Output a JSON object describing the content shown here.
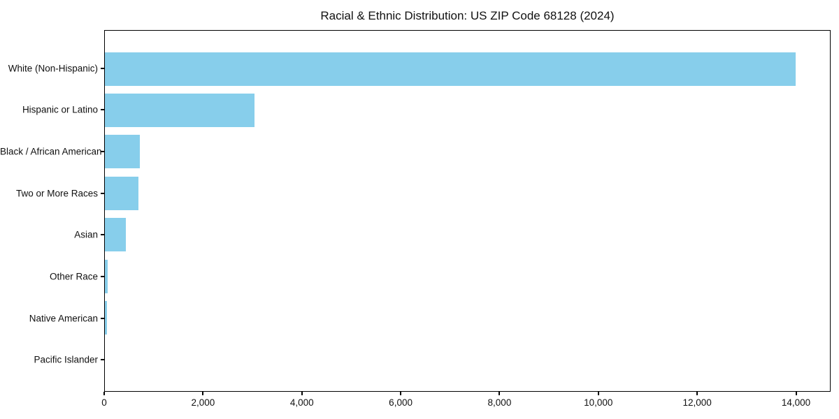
{
  "chart_data": {
    "type": "bar",
    "orientation": "horizontal",
    "title": "Racial & Ethnic Distribution: US ZIP Code 68128 (2024)",
    "categories": [
      "White (Non-Hispanic)",
      "Hispanic or Latino",
      "Black / African American",
      "Two or More Races",
      "Asian",
      "Other Race",
      "Native American",
      "Pacific Islander"
    ],
    "values": [
      14000,
      3030,
      710,
      680,
      430,
      60,
      40,
      0
    ],
    "xlabel": "",
    "ylabel": "",
    "xlim": [
      0,
      14700
    ],
    "x_ticks": [
      0,
      2000,
      4000,
      6000,
      8000,
      10000,
      12000,
      14000
    ],
    "x_tick_labels": [
      "0",
      "2,000",
      "4,000",
      "6,000",
      "8,000",
      "10,000",
      "12,000",
      "14,000"
    ],
    "bar_color": "#87CEEB",
    "border_color": "#000000",
    "background_color": "#ffffff",
    "grid": false,
    "legend_position": "none"
  }
}
